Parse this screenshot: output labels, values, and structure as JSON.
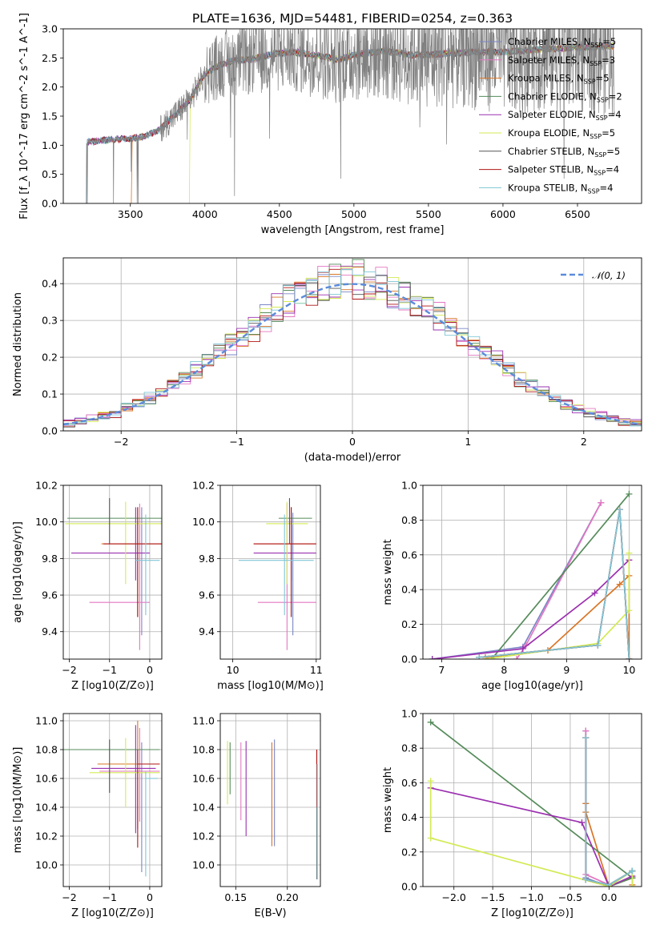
{
  "figure": {
    "title": "PLATE=1636, MJD=54481, FIBERID=0254, z=0.363"
  },
  "colors": {
    "models": [
      "#7b86c6",
      "#e377c2",
      "#d97526",
      "#558b5a",
      "#9b30b0",
      "#d4ea55",
      "#555555",
      "#b01515",
      "#7fc6d6"
    ],
    "data": "#808080",
    "gauss": "#5b8bdc",
    "grid": "#b0b0b0"
  },
  "chart_data": [
    {
      "id": "spectrum",
      "type": "line",
      "xlabel": "wavelength [Angstrom, rest frame]",
      "ylabel": "Flux [f_λ 10^-17 erg cm^-2 s^-1 A^-1]",
      "xlim": [
        3050,
        6930
      ],
      "ylim": [
        0,
        3.0
      ],
      "xticks": [
        3500,
        4000,
        4500,
        5000,
        5500,
        6000,
        6500
      ],
      "yticks": [
        0.0,
        0.5,
        1.0,
        1.5,
        2.0,
        2.5,
        3.0
      ],
      "legend_loc": "upper right",
      "legend": [
        {
          "name": "Chabrier MILES",
          "nssp": "5"
        },
        {
          "name": "Salpeter MILES",
          "nssp": "3"
        },
        {
          "name": "Kroupa MILES",
          "nssp": "5"
        },
        {
          "name": "Chabrier ELODIE",
          "nssp": "2"
        },
        {
          "name": "Salpeter ELODIE",
          "nssp": "4"
        },
        {
          "name": "Kroupa ELODIE",
          "nssp": "5"
        },
        {
          "name": "Chabrier STELIB",
          "nssp": "5"
        },
        {
          "name": "Salpeter STELIB",
          "nssp": "4"
        },
        {
          "name": "Kroupa STELIB",
          "nssp": "4"
        }
      ],
      "continuum": {
        "x": [
          3200,
          3300,
          3400,
          3500,
          3600,
          3700,
          3800,
          3900,
          4000,
          4100,
          4200,
          4300,
          4400,
          4500,
          4600,
          4700,
          4800,
          4900,
          5000,
          5200,
          5400,
          5600,
          5800,
          6000,
          6200,
          6400,
          6600,
          6750
        ],
        "y": [
          1.05,
          1.08,
          1.1,
          1.12,
          1.15,
          1.28,
          1.52,
          1.78,
          2.22,
          2.38,
          2.46,
          2.47,
          2.53,
          2.58,
          2.6,
          2.56,
          2.52,
          2.47,
          2.55,
          2.62,
          2.55,
          2.57,
          2.6,
          2.6,
          2.64,
          2.67,
          2.69,
          2.7
        ]
      },
      "model_starts": [
        3200,
        3200,
        3500,
        3200,
        3200,
        3890,
        3200,
        3200,
        3200
      ]
    },
    {
      "id": "residuals",
      "type": "line",
      "xlabel": "(data-model)/error",
      "ylabel": "Normed distribution",
      "xlim": [
        -2.5,
        2.5
      ],
      "ylim": [
        0,
        0.47
      ],
      "xticks": [
        -2,
        -1,
        0,
        1,
        2
      ],
      "yticks": [
        0.0,
        0.1,
        0.2,
        0.3,
        0.4
      ],
      "legend": [
        "𝒩(0, 1)"
      ],
      "legend_loc": "upper right",
      "bin_width": 0.1
    },
    {
      "id": "age_vs_Z",
      "type": "scatter",
      "xlabel": "Z [log10(Z/Z⊙)]",
      "ylabel": "age  [log10(age/yr)]",
      "xlim": [
        -2.15,
        0.3
      ],
      "ylim": [
        9.25,
        10.2
      ],
      "xticks": [
        -2,
        -1,
        0
      ],
      "yticks": [
        9.4,
        9.6,
        9.8,
        10.0,
        10.2
      ],
      "points": [
        {
          "x": -0.2,
          "y": 9.68,
          "xerr": [
            0.0,
            0.0
          ],
          "yerr": [
            0.3,
            0.4
          ]
        },
        {
          "x": -0.25,
          "y": 9.56,
          "xerr": [
            1.25,
            0.25
          ],
          "yerr": [
            0.26,
            0.54
          ]
        },
        {
          "x": -0.3,
          "y": 9.88,
          "xerr": [
            0.9,
            0.6
          ],
          "yerr": [
            0.4,
            0.2
          ]
        },
        {
          "x": -0.25,
          "y": 10.02,
          "xerr": [
            1.8,
            0.55
          ],
          "yerr": [
            0.0,
            0.0
          ]
        },
        {
          "x": -0.35,
          "y": 9.83,
          "xerr": [
            1.6,
            0.35
          ],
          "yerr": [
            0.15,
            0.25
          ]
        },
        {
          "x": -0.6,
          "y": 9.99,
          "xerr": [
            1.5,
            0.9
          ],
          "yerr": [
            0.33,
            0.12
          ]
        },
        {
          "x": -1.0,
          "y": 9.98,
          "xerr": [
            0.0,
            0.0
          ],
          "yerr": [
            0.1,
            0.15
          ]
        },
        {
          "x": -0.3,
          "y": 9.88,
          "xerr": [
            0.85,
            0.6
          ],
          "yerr": [
            0.4,
            0.2
          ]
        },
        {
          "x": -0.1,
          "y": 9.79,
          "xerr": [
            0.25,
            0.35
          ],
          "yerr": [
            0.3,
            0.25
          ]
        }
      ]
    },
    {
      "id": "age_vs_mass",
      "type": "scatter",
      "xlabel": "mass [log10(M/M⊙)]",
      "ylabel": "",
      "xlim": [
        9.85,
        11.05
      ],
      "ylim": [
        9.25,
        10.2
      ],
      "xticks": [
        10,
        11
      ],
      "yticks": [
        9.4,
        9.6,
        9.8,
        10.0,
        10.2
      ],
      "points": [
        {
          "x": 10.72,
          "y": 9.7,
          "xerr": [
            0.0,
            0.0
          ],
          "yerr": [
            0.32,
            0.35
          ]
        },
        {
          "x": 10.65,
          "y": 9.56,
          "xerr": [
            0.35,
            0.35
          ],
          "yerr": [
            0.26,
            0.54
          ]
        },
        {
          "x": 10.7,
          "y": 9.88,
          "xerr": [
            0.45,
            0.3
          ],
          "yerr": [
            0.4,
            0.2
          ]
        },
        {
          "x": 10.8,
          "y": 10.02,
          "xerr": [
            0.25,
            0.15
          ],
          "yerr": [
            0.0,
            0.0
          ]
        },
        {
          "x": 10.7,
          "y": 9.83,
          "xerr": [
            0.45,
            0.3
          ],
          "yerr": [
            0.15,
            0.25
          ]
        },
        {
          "x": 10.65,
          "y": 9.99,
          "xerr": [
            0.25,
            0.25
          ],
          "yerr": [
            0.33,
            0.12
          ]
        },
        {
          "x": 10.68,
          "y": 9.98,
          "xerr": [
            0.0,
            0.0
          ],
          "yerr": [
            0.1,
            0.15
          ]
        },
        {
          "x": 10.7,
          "y": 9.88,
          "xerr": [
            0.45,
            0.3
          ],
          "yerr": [
            0.4,
            0.2
          ]
        },
        {
          "x": 10.62,
          "y": 9.79,
          "xerr": [
            0.55,
            0.35
          ],
          "yerr": [
            0.3,
            0.25
          ]
        }
      ]
    },
    {
      "id": "mass_weight_vs_age",
      "type": "line",
      "xlabel": "age  [log10(age/yr)]",
      "ylabel": "mass weight",
      "xlim": [
        6.7,
        10.2
      ],
      "ylim": [
        0,
        1.0
      ],
      "xticks": [
        7,
        8,
        9,
        10
      ],
      "yticks": [
        0.0,
        0.2,
        0.4,
        0.6,
        0.8,
        1.0
      ],
      "series": [
        {
          "x": [
            6.85,
            8.3,
            9.55
          ],
          "y": [
            0.0,
            0.07,
            0.9
          ]
        },
        {
          "x": [
            8.2,
            8.35,
            9.55
          ],
          "y": [
            0.0,
            0.08,
            0.9
          ]
        },
        {
          "x": [
            7.7,
            8.7,
            9.85,
            10.0,
            10.0
          ],
          "y": [
            0.01,
            0.05,
            0.43,
            0.48,
            0.0
          ]
        },
        {
          "x": [
            7.8,
            10.0
          ],
          "y": [
            0.0,
            0.95
          ]
        },
        {
          "x": [
            6.85,
            8.3,
            9.45,
            10.0
          ],
          "y": [
            0.0,
            0.06,
            0.38,
            0.57
          ]
        },
        {
          "x": [
            7.7,
            9.5,
            10.0,
            10.0
          ],
          "y": [
            0.0,
            0.09,
            0.28,
            0.61
          ]
        },
        {
          "x": [
            7.6,
            9.5,
            9.85,
            10.0
          ],
          "y": [
            0.01,
            0.08,
            0.86,
            0.0
          ]
        },
        {
          "x": [
            7.6,
            9.5,
            9.85,
            10.0
          ],
          "y": [
            0.01,
            0.08,
            0.86,
            0.0
          ]
        },
        {
          "x": [
            7.6,
            9.5,
            9.85,
            10.0
          ],
          "y": [
            0.01,
            0.08,
            0.86,
            0.0
          ]
        }
      ]
    },
    {
      "id": "mass_vs_Z",
      "type": "scatter",
      "xlabel": "Z [log10(Z/Z⊙)]",
      "ylabel": "mass [log10(M/M⊙)]",
      "xlim": [
        -2.15,
        0.3
      ],
      "ylim": [
        9.85,
        11.05
      ],
      "xticks": [
        -2,
        -1,
        0
      ],
      "yticks": [
        10.0,
        10.2,
        10.4,
        10.6,
        10.8,
        11.0
      ],
      "points": [
        {
          "x": -0.2,
          "y": 10.45,
          "xerr": [
            0.0,
            0.0
          ],
          "yerr": [
            0.5,
            0.4
          ]
        },
        {
          "x": -0.25,
          "y": 10.65,
          "xerr": [
            1.0,
            0.5
          ],
          "yerr": [
            0.35,
            0.3
          ]
        },
        {
          "x": -0.3,
          "y": 10.7,
          "xerr": [
            1.0,
            0.5
          ],
          "yerr": [
            0.45,
            0.3
          ]
        },
        {
          "x": -0.25,
          "y": 10.8,
          "xerr": [
            2.0,
            0.5
          ],
          "yerr": [
            0.0,
            0.0
          ]
        },
        {
          "x": -0.35,
          "y": 10.67,
          "xerr": [
            1.1,
            0.5
          ],
          "yerr": [
            0.45,
            0.3
          ]
        },
        {
          "x": -0.6,
          "y": 10.64,
          "xerr": [
            0.9,
            0.85
          ],
          "yerr": [
            0.24,
            0.24
          ]
        },
        {
          "x": -1.0,
          "y": 10.67,
          "xerr": [
            0.0,
            0.0
          ],
          "yerr": [
            0.17,
            0.2
          ]
        },
        {
          "x": -0.3,
          "y": 10.7,
          "xerr": [
            0.0,
            0.55
          ],
          "yerr": [
            0.58,
            0.1
          ]
        },
        {
          "x": -0.1,
          "y": 10.6,
          "xerr": [
            0.0,
            0.3
          ],
          "yerr": [
            0.68,
            0.05
          ]
        }
      ]
    },
    {
      "id": "mass_vs_EBV",
      "type": "scatter",
      "xlabel": "E(B-V)",
      "ylabel": "",
      "xlim": [
        0.135,
        0.232
      ],
      "ylim": [
        9.85,
        11.05
      ],
      "xticks": [
        0.15,
        0.2
      ],
      "yticks": [
        10.0,
        10.2,
        10.4,
        10.6,
        10.8,
        11.0
      ],
      "points": [
        {
          "x": 0.1875,
          "y": 10.5,
          "xerr": [
            0,
            0
          ],
          "yerr": [
            0.37,
            0.37
          ]
        },
        {
          "x": 0.155,
          "y": 10.58,
          "xerr": [
            0,
            0
          ],
          "yerr": [
            0.27,
            0.27
          ]
        },
        {
          "x": 0.185,
          "y": 10.49,
          "xerr": [
            0,
            0
          ],
          "yerr": [
            0.36,
            0.36
          ]
        },
        {
          "x": 0.1445,
          "y": 10.67,
          "xerr": [
            0,
            0
          ],
          "yerr": [
            0.18,
            0.18
          ]
        },
        {
          "x": 0.16,
          "y": 10.53,
          "xerr": [
            0,
            0
          ],
          "yerr": [
            0.33,
            0.33
          ]
        },
        {
          "x": 0.142,
          "y": 10.64,
          "xerr": [
            0,
            0
          ],
          "yerr": [
            0.22,
            0.22
          ]
        },
        {
          "x": 0.2285,
          "y": 10.35,
          "xerr": [
            0,
            0
          ],
          "yerr": [
            0.45,
            0.45
          ]
        },
        {
          "x": 0.2285,
          "y": 10.6,
          "xerr": [
            0,
            0
          ],
          "yerr": [
            0.2,
            0.2
          ]
        },
        {
          "x": 0.229,
          "y": 10.3,
          "xerr": [
            0,
            0
          ],
          "yerr": [
            0.4,
            0.4
          ]
        }
      ]
    },
    {
      "id": "mass_weight_vs_Z",
      "type": "line",
      "xlabel": "Z [log10(Z/Z⊙)]",
      "ylabel": "mass weight",
      "xlim": [
        -2.4,
        0.42
      ],
      "ylim": [
        0,
        1.0
      ],
      "xticks": [
        -2.0,
        -1.5,
        -1.0,
        -0.5,
        0.0
      ],
      "yticks": [
        0.0,
        0.2,
        0.4,
        0.6,
        0.8,
        1.0
      ],
      "series": [
        {
          "x": [
            -0.3,
            -0.3,
            0.0,
            0.3
          ],
          "y": [
            0.9,
            0.05,
            0.0,
            0.05
          ]
        },
        {
          "x": [
            -0.3,
            -0.3,
            0.0
          ],
          "y": [
            0.9,
            0.07,
            0.01
          ]
        },
        {
          "x": [
            -0.3,
            -0.3,
            0.0,
            0.3,
            0.3
          ],
          "y": [
            0.48,
            0.43,
            0.0,
            0.05,
            0.01
          ]
        },
        {
          "x": [
            -2.3,
            0.3,
            0.0
          ],
          "y": [
            0.95,
            0.05,
            0.0
          ]
        },
        {
          "x": [
            -2.3,
            -0.35,
            0.0,
            0.3
          ],
          "y": [
            0.57,
            0.37,
            0.0,
            0.06
          ]
        },
        {
          "x": [
            -2.3,
            -2.3,
            0.0,
            0.3,
            0.3
          ],
          "y": [
            0.61,
            0.28,
            0.0,
            0.09,
            0.0
          ]
        },
        {
          "x": [
            -0.3,
            -0.3,
            0.0,
            0.3
          ],
          "y": [
            0.86,
            0.04,
            0.01,
            0.09
          ]
        },
        {
          "x": [
            -0.3,
            -0.3,
            0.0,
            0.3
          ],
          "y": [
            0.86,
            0.04,
            0.01,
            0.09
          ]
        },
        {
          "x": [
            -0.3,
            -0.3,
            0.0,
            0.3
          ],
          "y": [
            0.86,
            0.04,
            0.01,
            0.09
          ]
        }
      ]
    }
  ]
}
